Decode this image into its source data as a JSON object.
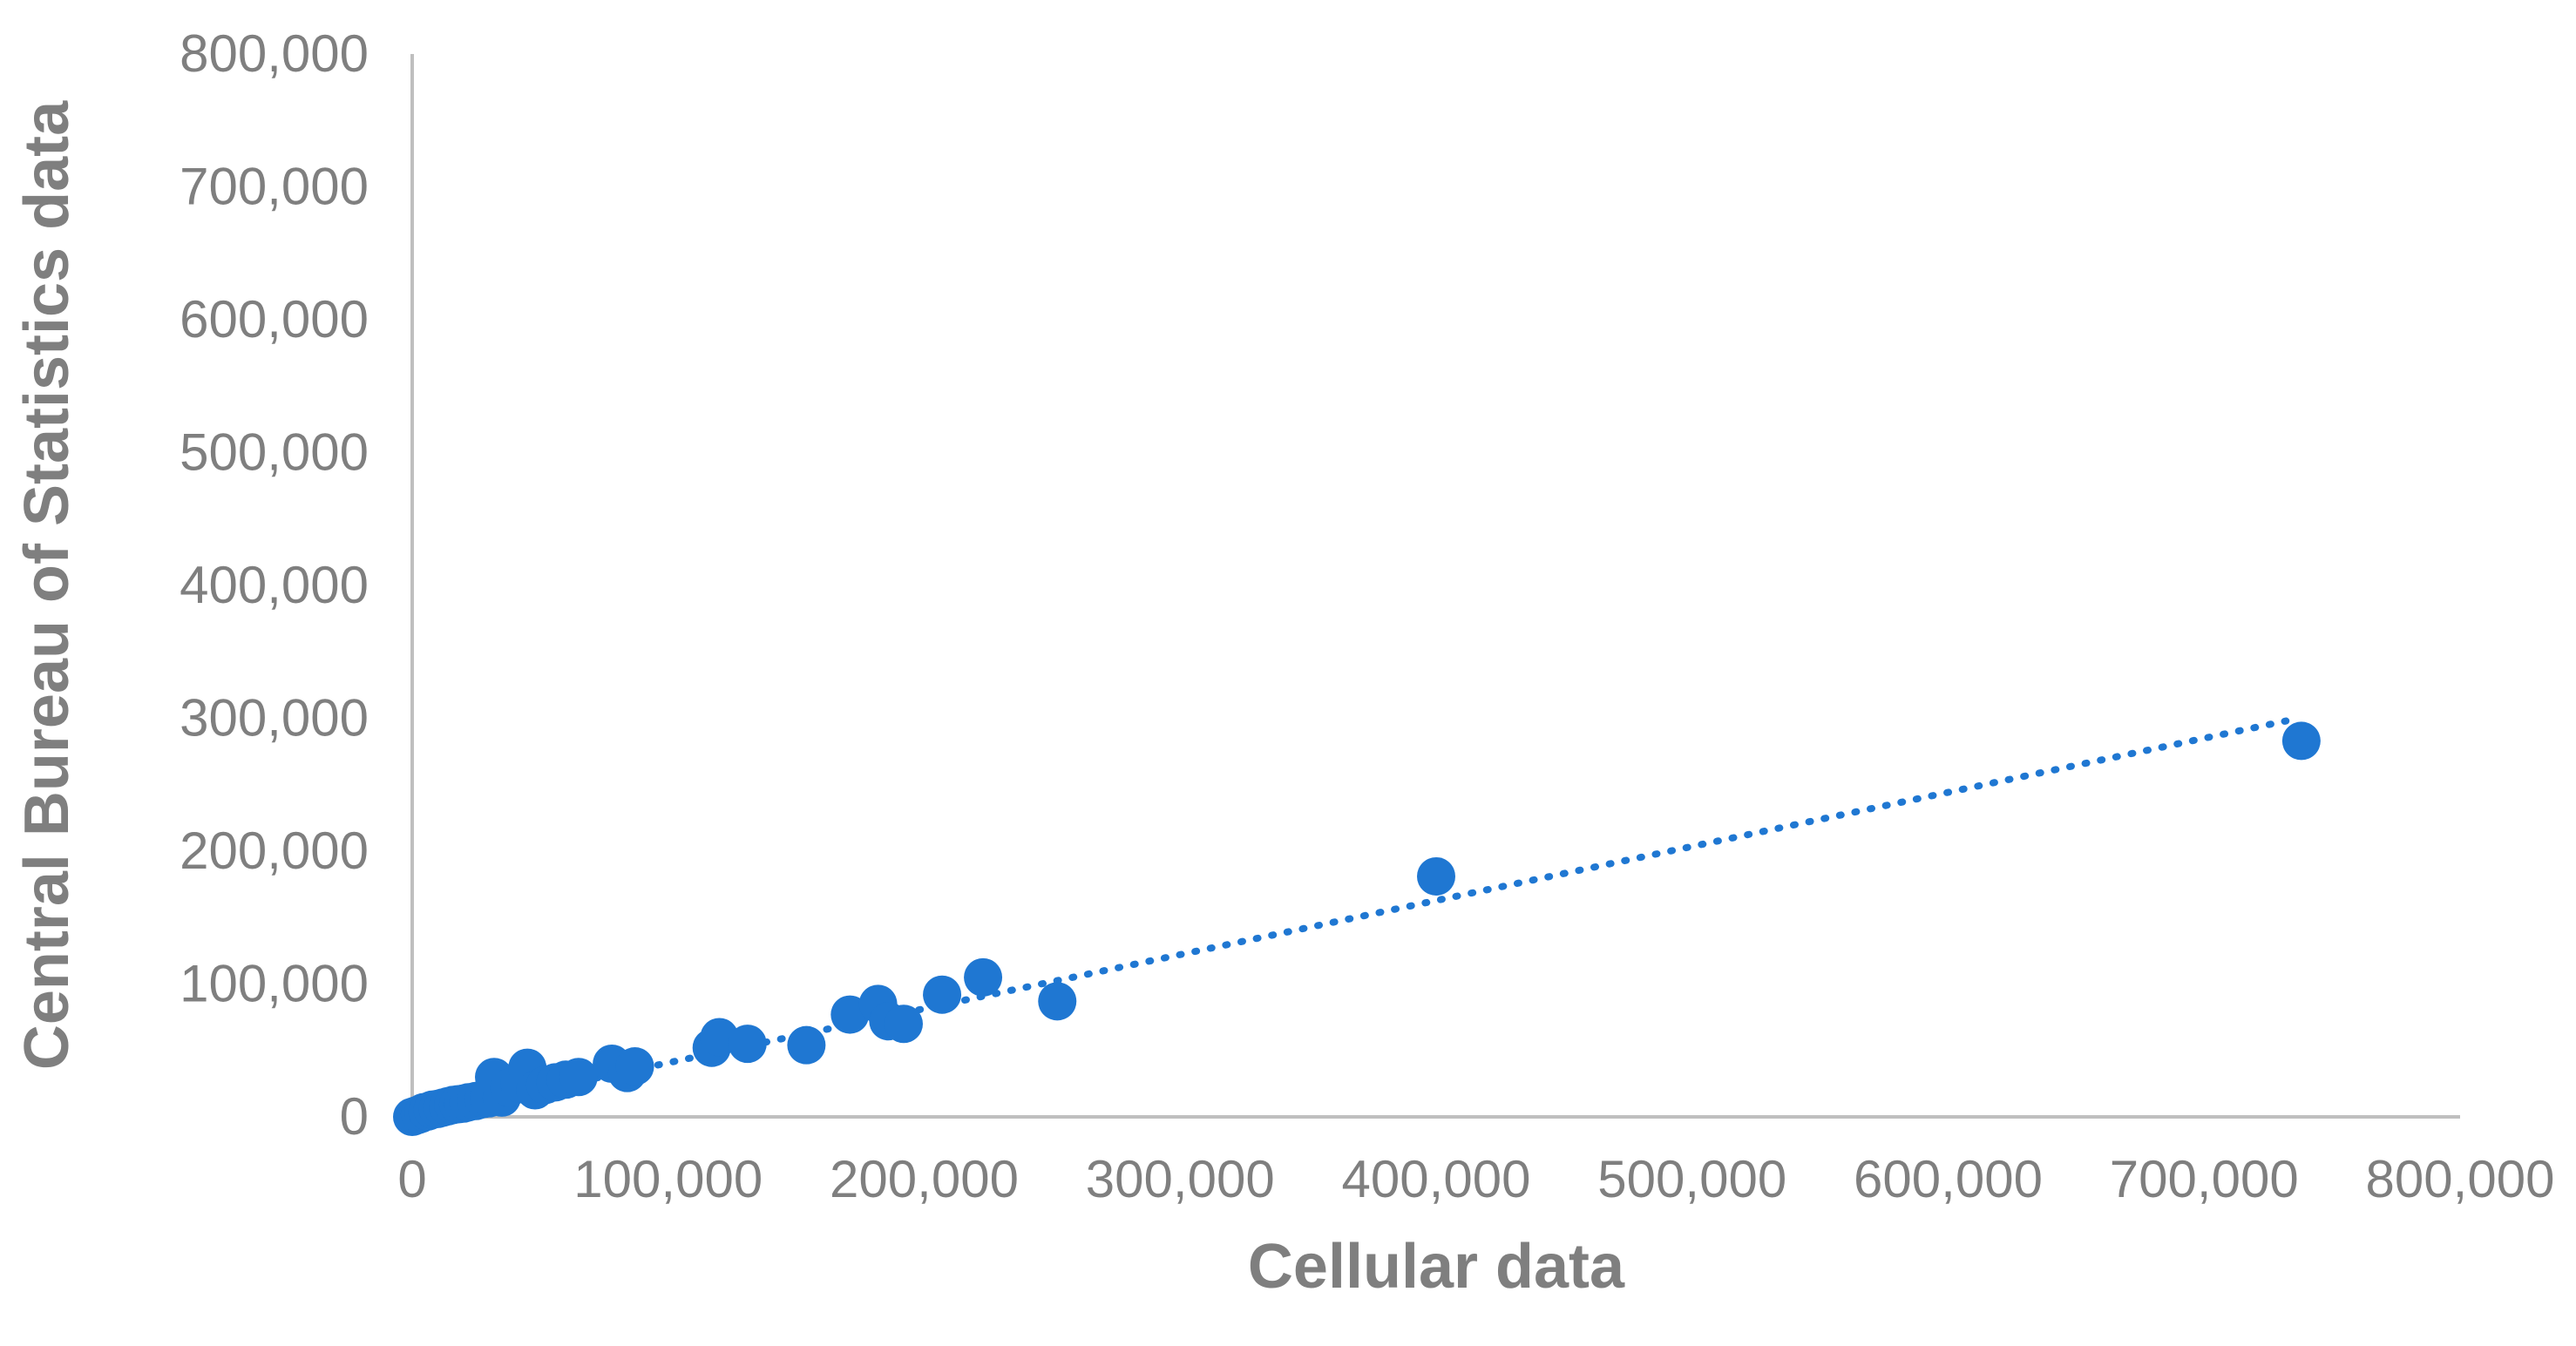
{
  "chart_data": {
    "type": "scatter",
    "title": "",
    "xlabel": "Cellular data",
    "ylabel": "Central Bureau of Statistics data",
    "xlim": [
      0,
      800000
    ],
    "ylim": [
      0,
      800000
    ],
    "x_ticks": [
      "0",
      "100,000",
      "200,000",
      "300,000",
      "400,000",
      "500,000",
      "600,000",
      "700,000",
      "800,000"
    ],
    "y_ticks": [
      "0",
      "100,000",
      "200,000",
      "300,000",
      "400,000",
      "500,000",
      "600,000",
      "700,000",
      "800,000"
    ],
    "x_tick_values": [
      0,
      100000,
      200000,
      300000,
      400000,
      500000,
      600000,
      700000,
      800000
    ],
    "y_tick_values": [
      0,
      100000,
      200000,
      300000,
      400000,
      500000,
      600000,
      700000,
      800000
    ],
    "grid": false,
    "legend": "none",
    "trendline": {
      "style": "dotted",
      "x": [
        0,
        732000
      ],
      "y": [
        0,
        298000
      ]
    },
    "point_color": "#1f77d2",
    "axis_color": "#bfbfbf",
    "text_color": "#7f7f7f",
    "points": [
      [
        0,
        0
      ],
      [
        1500,
        1000
      ],
      [
        3000,
        2000
      ],
      [
        4500,
        3500
      ],
      [
        6000,
        4000
      ],
      [
        8000,
        5500
      ],
      [
        10000,
        6000
      ],
      [
        12000,
        7000
      ],
      [
        14000,
        8000
      ],
      [
        16000,
        9000
      ],
      [
        18000,
        9500
      ],
      [
        20000,
        10000
      ],
      [
        22000,
        11000
      ],
      [
        25000,
        12000
      ],
      [
        28000,
        13500
      ],
      [
        30000,
        14000
      ],
      [
        32000,
        30000
      ],
      [
        35000,
        14500
      ],
      [
        38000,
        22000
      ],
      [
        42000,
        25000
      ],
      [
        45000,
        37000
      ],
      [
        48000,
        20000
      ],
      [
        52000,
        24000
      ],
      [
        56000,
        26000
      ],
      [
        60000,
        28000
      ],
      [
        65000,
        30000
      ],
      [
        78000,
        40000
      ],
      [
        84000,
        33000
      ],
      [
        87000,
        38000
      ],
      [
        117000,
        52000
      ],
      [
        120000,
        60000
      ],
      [
        131000,
        55000
      ],
      [
        154000,
        54000
      ],
      [
        171000,
        77000
      ],
      [
        182000,
        85000
      ],
      [
        186000,
        72000
      ],
      [
        192000,
        70000
      ],
      [
        207000,
        92000
      ],
      [
        223000,
        105000
      ],
      [
        252000,
        87000
      ],
      [
        400000,
        181000
      ],
      [
        738000,
        283000
      ]
    ]
  }
}
